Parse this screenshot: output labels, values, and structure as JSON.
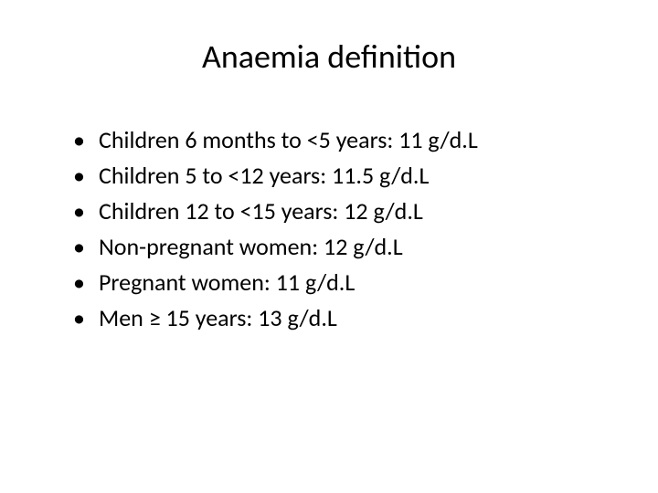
{
  "slide": {
    "title": "Anaemia definition",
    "bullets": [
      "Children 6 months to <5 years: 11 g/d.L",
      "Children 5 to <12 years: 11.5 g/d.L",
      "Children 12 to <15 years: 12 g/d.L",
      "Non-pregnant women: 12 g/d.L",
      "Pregnant women: 11 g/d.L",
      "Men ≥ 15 years: 13 g/d.L"
    ],
    "title_fontsize": 36,
    "bullet_fontsize": 26,
    "background_color": "#ffffff",
    "text_color": "#000000",
    "font_family": "Calibri, Arial, sans-serif"
  }
}
